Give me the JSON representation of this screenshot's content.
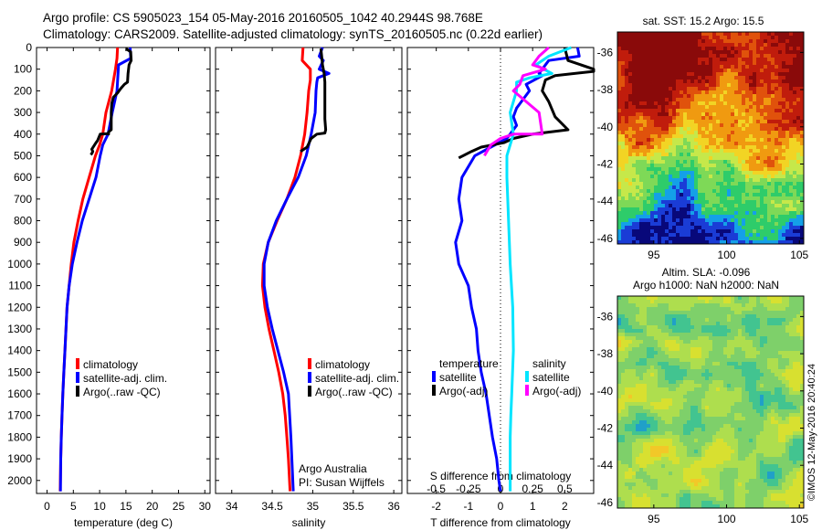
{
  "title_line1": "Argo profile: CS 5905023_154 05-May-2016 20160505_1042 40.2944S 98.768E",
  "title_line2": "Climatology: CARS2009. Satellite-adjusted climatology: synTS_20160505.nc (0.22d earlier)",
  "colors": {
    "climatology": "#ff0000",
    "satellite": "#0000ff",
    "argo": "#000000",
    "sal_satellite": "#00e5ff",
    "sal_argo": "#ff00ff"
  },
  "chart_data": [
    {
      "id": "temperature",
      "type": "line",
      "xlabel": "temperature (deg C)",
      "xlim": [
        -2,
        31
      ],
      "ylim": [
        0,
        2060
      ],
      "xticks": [
        "0",
        "5",
        "10",
        "15",
        "20",
        "25",
        "30"
      ],
      "xtick_values": [
        0,
        5,
        10,
        15,
        20,
        25,
        30
      ],
      "yticks": [
        "0",
        "100",
        "200",
        "300",
        "400",
        "500",
        "600",
        "700",
        "800",
        "900",
        "1000",
        "1100",
        "1200",
        "1300",
        "1400",
        "1500",
        "1600",
        "1700",
        "1800",
        "1900",
        "2000"
      ],
      "legend": [
        "climatology",
        "satellite-adj. clim.",
        "Argo(..raw -QC)"
      ],
      "series": [
        {
          "name": "climatology",
          "color": "#ff0000",
          "x": [
            13.4,
            13.3,
            13.0,
            12.3,
            11.2,
            10.6,
            10.0,
            9.2,
            8.0,
            6.8,
            5.9,
            5.1,
            4.6,
            4.2,
            3.8,
            3.4,
            3.2,
            3.0,
            2.85,
            2.7,
            2.6,
            2.5
          ],
          "y": [
            0,
            50,
            100,
            200,
            300,
            400,
            450,
            500,
            600,
            700,
            800,
            900,
            1000,
            1100,
            1200,
            1400,
            1500,
            1600,
            1700,
            1800,
            1900,
            2050
          ]
        },
        {
          "name": "satellite-adj. clim.",
          "color": "#0000ff",
          "x": [
            15.8,
            15.9,
            13.6,
            13.3,
            12.4,
            11.6,
            10.6,
            10.1,
            9.3,
            8.0,
            6.7,
            5.7,
            4.8,
            4.2,
            3.8,
            3.4,
            3.2,
            3.0,
            2.85,
            2.7,
            2.6,
            2.55
          ],
          "y": [
            0,
            50,
            80,
            200,
            300,
            400,
            450,
            500,
            600,
            700,
            800,
            900,
            1000,
            1100,
            1200,
            1400,
            1500,
            1600,
            1700,
            1800,
            1900,
            2050
          ]
        },
        {
          "name": "Argo(..raw -QC)",
          "color": "#000000",
          "x": [
            15.0,
            15.9,
            16.0,
            15.6,
            15.4,
            15.3,
            14.7,
            14.0,
            13.4,
            12.6,
            12.3,
            12.2,
            12.2,
            12.2,
            11.7,
            11.7,
            11.7,
            10.1,
            9.6,
            9.3,
            8.5,
            8.7,
            8.5,
            8.3
          ],
          "y": [
            5,
            20,
            60,
            80,
            120,
            160,
            170,
            190,
            210,
            230,
            260,
            300,
            340,
            380,
            390,
            400,
            398,
            400,
            430,
            440,
            470,
            480,
            490,
            495
          ]
        }
      ]
    },
    {
      "id": "salinity",
      "type": "line",
      "xlabel": "salinity",
      "xlim": [
        33.8,
        36.1
      ],
      "ylim": [
        0,
        2060
      ],
      "xticks": [
        "34",
        "34.5",
        "35",
        "35.5",
        "36"
      ],
      "xtick_values": [
        34,
        34.5,
        35,
        35.5,
        36
      ],
      "legend": [
        "climatology",
        "satellite-adj. clim.",
        "Argo(..raw -QC)"
      ],
      "annotation_line1": "Argo Australia",
      "annotation_line2": "PI: Susan Wijffels",
      "series": [
        {
          "name": "climatology",
          "color": "#ff0000",
          "x": [
            34.88,
            34.87,
            34.97,
            34.97,
            34.95,
            34.93,
            34.9,
            34.85,
            34.78,
            34.68,
            34.56,
            34.45,
            34.39,
            34.38,
            34.41,
            34.46,
            34.52,
            34.58,
            34.63,
            34.66,
            34.68,
            34.7,
            34.72
          ],
          "y": [
            0,
            60,
            100,
            150,
            200,
            300,
            400,
            500,
            600,
            700,
            800,
            900,
            1000,
            1100,
            1200,
            1300,
            1400,
            1500,
            1600,
            1700,
            1800,
            1900,
            2050
          ]
        },
        {
          "name": "satellite-adj. clim.",
          "color": "#0000ff",
          "x": [
            35.12,
            35.08,
            35.13,
            35.08,
            35.2,
            35.06,
            35.05,
            35.04,
            35.03,
            34.98,
            34.92,
            34.82,
            34.68,
            34.55,
            34.45,
            34.4,
            34.4,
            34.44,
            34.5,
            34.57,
            34.64,
            34.7,
            34.73,
            34.76
          ],
          "y": [
            0,
            40,
            60,
            100,
            120,
            140,
            160,
            200,
            300,
            400,
            500,
            600,
            700,
            800,
            900,
            1000,
            1100,
            1200,
            1300,
            1400,
            1500,
            1600,
            1800,
            2050
          ]
        },
        {
          "name": "Argo(..raw -QC)",
          "color": "#000000",
          "x": [
            35.1,
            35.11,
            35.12,
            35.14,
            35.15,
            35.15,
            35.15,
            35.15,
            35.16,
            35.15,
            35.05,
            34.98,
            34.93,
            34.85
          ],
          "y": [
            5,
            40,
            80,
            120,
            160,
            200,
            260,
            330,
            380,
            395,
            400,
            420,
            460,
            480
          ]
        }
      ]
    },
    {
      "id": "difference",
      "type": "line",
      "xlabel": "T difference from climatology",
      "top_label": "S difference from climatology",
      "xlim": [
        -2.9,
        2.9
      ],
      "ylim": [
        0,
        2060
      ],
      "xticks": [
        "-2",
        "-1",
        "0",
        "1",
        "2"
      ],
      "xtick_values": [
        -2,
        -1,
        0,
        1,
        2
      ],
      "sticks": [
        "-0.5",
        "-0.25",
        "0",
        "0.25",
        "0.5"
      ],
      "stick_values": [
        -2,
        -1,
        0,
        1,
        2
      ],
      "legend_temp_heading": "temperature",
      "legend_sal_heading": "salinity",
      "legend": [
        "satellite",
        "Argo(-adj)",
        "satellite",
        "Argo(-adj)"
      ],
      "series": [
        {
          "name": "temperature satellite",
          "color": "#0000ff",
          "x": [
            2.4,
            2.45,
            1.5,
            1.3,
            1.2,
            1.3,
            0.8,
            0.9,
            0.7,
            0.6,
            0.5,
            0.4,
            0.5,
            0.2,
            -0.3,
            -0.8,
            -1.2,
            -1.3,
            -1.2,
            -1.4,
            -1.3,
            -1.0,
            -0.9,
            -0.75,
            -0.7,
            -0.6,
            -0.45,
            -0.35,
            -0.25,
            -0.12,
            -0.05,
            0.0
          ],
          "y": [
            0,
            40,
            60,
            100,
            120,
            130,
            170,
            200,
            240,
            260,
            280,
            320,
            360,
            420,
            460,
            500,
            600,
            700,
            800,
            900,
            1000,
            1100,
            1200,
            1300,
            1400,
            1500,
            1600,
            1700,
            1800,
            1900,
            2000,
            2050
          ]
        },
        {
          "name": "temperature Argo(-adj)",
          "color": "#000000",
          "x": [
            2.0,
            2.1,
            2.9,
            2.9,
            1.7,
            1.4,
            1.3,
            1.5,
            1.7,
            2.1,
            1.0,
            0.4,
            0.1,
            -0.6,
            -0.9,
            -1.3
          ],
          "y": [
            0,
            60,
            100,
            110,
            130,
            150,
            200,
            250,
            320,
            380,
            400,
            420,
            440,
            460,
            480,
            510
          ]
        },
        {
          "name": "salinity satellite",
          "color": "#00e5ff",
          "x": [
            2.2,
            1.5,
            1.1,
            1.6,
            0.9,
            0.5,
            0.5,
            0.3,
            0.4,
            0.2,
            0.2,
            0.25,
            0.3,
            0.38,
            0.4,
            0.35,
            0.32,
            0.3,
            0.3,
            0.3,
            0.3
          ],
          "y": [
            0,
            40,
            80,
            120,
            140,
            160,
            200,
            300,
            400,
            500,
            600,
            800,
            1000,
            1200,
            1400,
            1600,
            1700,
            1800,
            1900,
            2000,
            2050
          ]
        },
        {
          "name": "salinity Argo(-adj)",
          "color": "#ff00ff",
          "x": [
            1.5,
            1.2,
            1.0,
            1.4,
            0.7,
            0.6,
            0.4,
            1.2,
            1.3,
            0.4,
            0.0,
            -0.3,
            -0.5
          ],
          "y": [
            0,
            40,
            80,
            100,
            130,
            170,
            200,
            300,
            400,
            400,
            420,
            450,
            500
          ]
        }
      ]
    },
    {
      "id": "sst_map",
      "type": "heatmap",
      "title": "sat. SST: 15.2 Argo: 15.5",
      "xlim": [
        92.5,
        105.3
      ],
      "ylim": [
        -46.3,
        -34.9
      ],
      "xticks": [
        "95",
        "100",
        "105"
      ],
      "xtick_values": [
        95,
        100,
        105
      ],
      "yticks": [
        "-36",
        "-38",
        "-40",
        "-42",
        "-44",
        "-46"
      ],
      "ytick_values": [
        -36,
        -38,
        -40,
        -42,
        -44,
        -46
      ],
      "color_scale": [
        "#08087a",
        "#1a3cd6",
        "#14a0e8",
        "#2ecc6a",
        "#7ed957",
        "#c6e84a",
        "#f2d424",
        "#f09a10",
        "#e0520c",
        "#c01c0c",
        "#8a0a0a"
      ],
      "lat_band_levels": [
        10,
        10,
        9.5,
        9,
        8.5,
        8,
        7.5,
        6.5,
        5.5,
        4.5,
        3.5,
        3,
        2,
        1.2,
        0.6
      ]
    },
    {
      "id": "sla_map",
      "type": "heatmap",
      "title_line1": "Altim. SLA: -0.096",
      "title_line2": "Argo h1000: NaN h2000: NaN",
      "xlim": [
        92.5,
        105.3
      ],
      "ylim": [
        -46.3,
        -34.9
      ],
      "xticks": [
        "95",
        "100",
        "105"
      ],
      "xtick_values": [
        95,
        100,
        105
      ],
      "yticks": [
        "-36",
        "-38",
        "-40",
        "-42",
        "-44",
        "-46"
      ],
      "ytick_values": [
        -36,
        -38,
        -40,
        -42,
        -44,
        -46
      ],
      "color_scale": [
        "#20a0c8",
        "#42c490",
        "#7ed06a",
        "#aede4e",
        "#d8e030",
        "#f2c828"
      ]
    }
  ],
  "watermark": "©IMOS 12-May-2016 20:40:24"
}
